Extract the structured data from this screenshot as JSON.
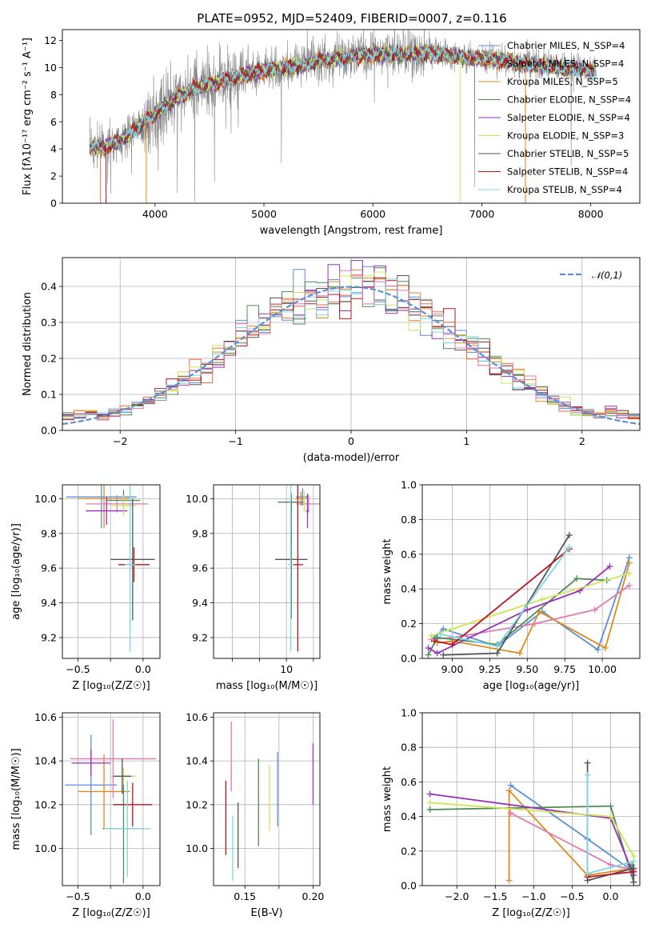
{
  "chart_data": [
    {
      "id": "spectrum",
      "type": "line",
      "title": "PLATE=0952, MJD=52409, FIBERID=0007, z=0.116",
      "xlabel": "wavelength [Angstrom, rest frame]",
      "ylabel": "Flux [fλ10⁻¹⁷ erg cm⁻² s⁻¹ A⁻¹]",
      "xlim": [
        3150,
        8450
      ],
      "ylim": [
        0,
        12.8
      ],
      "xticks": [
        4000,
        5000,
        6000,
        7000,
        8000
      ],
      "yticks": [
        0,
        2,
        4,
        6,
        8,
        10,
        12
      ],
      "continuum": {
        "x": [
          3400,
          3500,
          3600,
          3700,
          3800,
          3900,
          4000,
          4200,
          4400,
          4600,
          4800,
          5000,
          5200,
          5400,
          5600,
          5800,
          6000,
          6300,
          6600,
          6900,
          7200,
          7400,
          7700,
          8000,
          8050
        ],
        "y": [
          4.3,
          4.0,
          4.3,
          4.7,
          5.3,
          6.0,
          6.6,
          7.8,
          8.6,
          9.0,
          9.4,
          9.8,
          10.0,
          10.3,
          10.6,
          10.8,
          11.0,
          11.0,
          11.0,
          10.7,
          10.5,
          10.3,
          10.0,
          9.8,
          9.8
        ]
      },
      "series": [
        {
          "name": "Chabrier MILES, N_SSP=4",
          "color": "#5b8fd6"
        },
        {
          "name": "Salpeter MILES, N_SSP=4",
          "color": "#f06b3a"
        },
        {
          "name": "Kroupa MILES, N_SSP=5",
          "color": "#e08a1e"
        },
        {
          "name": "Chabrier ELODIE, N_SSP=4",
          "color": "#4e8c52"
        },
        {
          "name": "Salpeter ELODIE, N_SSP=4",
          "color": "#9b30b8"
        },
        {
          "name": "Kroupa ELODIE, N_SSP=3",
          "color": "#cde55a"
        },
        {
          "name": "Chabrier STELIB, N_SSP=5",
          "color": "#555555"
        },
        {
          "name": "Salpeter STELIB, N_SSP=4",
          "color": "#b8161c"
        },
        {
          "name": "Kroupa STELIB, N_SSP=4",
          "color": "#7ed6e6"
        }
      ],
      "legend": "right"
    },
    {
      "id": "residuals",
      "type": "step",
      "xlabel": "(data-model)/error",
      "ylabel": "Normed distribution",
      "xlim": [
        -2.5,
        2.5
      ],
      "ylim": [
        0,
        0.48
      ],
      "xticks": [
        -2,
        -1,
        0,
        1,
        2
      ],
      "yticks": [
        0.0,
        0.1,
        0.2,
        0.3,
        0.4
      ],
      "gaussian_label": "𝒩(0,1)",
      "gaussian_color": "#5b8fd6",
      "legend": "top-right",
      "bin_width": 0.1,
      "colors": [
        "#5b8fd6",
        "#f06b3a",
        "#e08a1e",
        "#4e8c52",
        "#9b30b8",
        "#cde55a",
        "#555555",
        "#b8161c",
        "#7ed6e6",
        "#e07ab0"
      ]
    },
    {
      "id": "age_vs_Z",
      "type": "errorbar",
      "xlabel": "Z [log₁₀(Z/Z☉)]",
      "ylabel": "age  [log₁₀(age/yr)]",
      "xlim": [
        -0.62,
        0.13
      ],
      "ylim": [
        9.08,
        10.08
      ],
      "xticks": [
        -0.5,
        -0.25,
        0.0
      ],
      "xtick_labels": [
        "−0.5",
        "",
        "0.0"
      ],
      "yticks": [
        9.2,
        9.4,
        9.6,
        9.8,
        10.0
      ],
      "points": [
        {
          "x": -0.32,
          "xerr": 0.27,
          "y": 10.01,
          "yerr": 0.18,
          "color": "#5b8fd6"
        },
        {
          "x": -0.3,
          "xerr": 0.2,
          "y": 10.0,
          "yerr": 0.17,
          "color": "#e08a1e"
        },
        {
          "x": -0.2,
          "xerr": 0.24,
          "y": 9.97,
          "yerr": 0.05,
          "color": "#e07ab0"
        },
        {
          "x": -0.15,
          "xerr": 0.13,
          "y": 9.99,
          "yerr": 0.06,
          "color": "#4e8c52"
        },
        {
          "x": -0.28,
          "xerr": 0.16,
          "y": 9.93,
          "yerr": 0.08,
          "color": "#9b30b8"
        },
        {
          "x": -0.15,
          "xerr": 0.1,
          "y": 9.96,
          "yerr": 0.06,
          "color": "#cde55a"
        },
        {
          "x": -0.08,
          "xerr": 0.17,
          "y": 9.65,
          "yerr": 0.35,
          "color": "#555555"
        },
        {
          "x": -0.07,
          "xerr": 0.12,
          "y": 9.62,
          "yerr": 0.1,
          "color": "#b8161c"
        },
        {
          "x": -0.1,
          "xerr": 0.04,
          "y": 9.62,
          "yerr": 0.5,
          "color": "#7ed6e6"
        }
      ]
    },
    {
      "id": "age_vs_mass",
      "type": "errorbar",
      "xlabel": "mass [log₁₀(M/M☉)]",
      "ylabel": "",
      "xlim": [
        8.65,
        10.62
      ],
      "ylim": [
        9.08,
        10.08
      ],
      "xticks": [
        9,
        9.5,
        10,
        10.5
      ],
      "xtick_labels": [
        "",
        "",
        "10",
        ""
      ],
      "yticks": [
        9.2,
        9.4,
        9.6,
        9.8,
        10.0
      ],
      "points": [
        {
          "x": 10.3,
          "xerr": 0.12,
          "y": 10.01,
          "yerr": 0.05,
          "color": "#5b8fd6"
        },
        {
          "x": 10.27,
          "xerr": 0.1,
          "y": 10.0,
          "yerr": 0.04,
          "color": "#e08a1e"
        },
        {
          "x": 10.41,
          "xerr": 0.22,
          "y": 9.97,
          "yerr": 0.05,
          "color": "#e07ab0"
        },
        {
          "x": 10.09,
          "xerr": 0.25,
          "y": 9.98,
          "yerr": 0.05,
          "color": "#4e8c52"
        },
        {
          "x": 10.39,
          "xerr": 0.03,
          "y": 9.93,
          "yerr": 0.1,
          "color": "#9b30b8"
        },
        {
          "x": 10.33,
          "xerr": 0.02,
          "y": 9.98,
          "yerr": 0.06,
          "color": "#cde55a"
        },
        {
          "x": 10.09,
          "xerr": 0.3,
          "y": 9.65,
          "yerr": 0.34,
          "color": "#555555"
        },
        {
          "x": 10.21,
          "xerr": 0.1,
          "y": 9.62,
          "yerr": 0.5,
          "color": "#b8161c"
        },
        {
          "x": 10.08,
          "xerr": 0.05,
          "y": 9.62,
          "yerr": 0.5,
          "color": "#7ed6e6"
        }
      ]
    },
    {
      "id": "weight_vs_age",
      "type": "line",
      "xlabel": "age  [log₁₀(age/yr)]",
      "ylabel": "mass weight",
      "xlim": [
        8.8,
        10.25
      ],
      "ylim": [
        0.0,
        1.0
      ],
      "xticks": [
        9.0,
        9.25,
        9.5,
        9.75,
        10.0
      ],
      "xtick_labels": [
        "9.00",
        "9.25",
        "9.50",
        "9.75",
        "10.00"
      ],
      "yticks": [
        0.0,
        0.2,
        0.4,
        0.6,
        0.8,
        1.0
      ],
      "series": [
        {
          "color": "#5b8fd6",
          "x": [
            8.88,
            8.94,
            9.3,
            9.6,
            9.97,
            10.18
          ],
          "y": [
            0.12,
            0.17,
            0.07,
            0.27,
            0.05,
            0.58
          ]
        },
        {
          "color": "#e08a1e",
          "x": [
            8.9,
            9.0,
            9.45,
            9.58,
            10.02,
            10.18
          ],
          "y": [
            0.09,
            0.1,
            0.03,
            0.27,
            0.06,
            0.55
          ]
        },
        {
          "color": "#e07ab0",
          "x": [
            8.86,
            9.0,
            9.55,
            9.95,
            10.18
          ],
          "y": [
            0.11,
            0.12,
            0.2,
            0.28,
            0.42
          ]
        },
        {
          "color": "#4e8c52",
          "x": [
            8.84,
            8.9,
            9.3,
            9.83,
            10.03
          ],
          "y": [
            0.02,
            0.12,
            0.08,
            0.46,
            0.45
          ]
        },
        {
          "color": "#9b30b8",
          "x": [
            8.84,
            8.9,
            9.5,
            9.85,
            10.05
          ],
          "y": [
            0.06,
            0.03,
            0.28,
            0.39,
            0.53
          ]
        },
        {
          "color": "#cde55a",
          "x": [
            8.86,
            9.0,
            9.6,
            10.18
          ],
          "y": [
            0.13,
            0.17,
            0.34,
            0.49
          ]
        },
        {
          "color": "#555555",
          "x": [
            8.94,
            9.3,
            9.78
          ],
          "y": [
            0.02,
            0.03,
            0.71
          ]
        },
        {
          "color": "#b8161c",
          "x": [
            8.88,
            9.0,
            9.78
          ],
          "y": [
            0.1,
            0.08,
            0.63
          ]
        },
        {
          "color": "#7ed6e6",
          "x": [
            8.92,
            9.3,
            9.78
          ],
          "y": [
            0.14,
            0.07,
            0.64
          ]
        }
      ]
    },
    {
      "id": "mass_vs_Z",
      "type": "errorbar",
      "xlabel": "Z [log₁₀(Z/Z☉)]",
      "ylabel": "mass [log₁₀(M/M☉)]",
      "xlim": [
        -0.62,
        0.13
      ],
      "ylim": [
        9.83,
        10.62
      ],
      "xticks": [
        -0.5,
        -0.25,
        0.0
      ],
      "xtick_labels": [
        "−0.5",
        "",
        "0.0"
      ],
      "yticks": [
        10.0,
        10.2,
        10.4,
        10.6
      ],
      "points": [
        {
          "x": -0.4,
          "xerr": 0.2,
          "y": 10.29,
          "yerr": 0.23,
          "color": "#5b8fd6"
        },
        {
          "x": -0.3,
          "xerr": 0.2,
          "y": 10.26,
          "yerr": 0.17,
          "color": "#e08a1e"
        },
        {
          "x": -0.23,
          "xerr": 0.33,
          "y": 10.41,
          "yerr": 0.18,
          "color": "#e07ab0"
        },
        {
          "x": -0.15,
          "xerr": 0.16,
          "y": 10.09,
          "yerr": 0.25,
          "color": "#4e8c52"
        },
        {
          "x": -0.4,
          "xerr": 0.15,
          "y": 10.39,
          "yerr": 0.06,
          "color": "#9b30b8"
        },
        {
          "x": -0.15,
          "xerr": 0.1,
          "y": 10.33,
          "yerr": 0.04,
          "color": "#cde55a"
        },
        {
          "x": -0.16,
          "xerr": 0.07,
          "y": 10.33,
          "yerr": 0.08,
          "color": "#555555"
        },
        {
          "x": -0.08,
          "xerr": 0.15,
          "y": 10.2,
          "yerr": 0.1,
          "color": "#b8161c"
        },
        {
          "x": -0.12,
          "xerr": 0.18,
          "y": 10.09,
          "yerr": 0.22,
          "color": "#7ed6e6"
        }
      ]
    },
    {
      "id": "mass_vs_ebv",
      "type": "errorbar",
      "xlabel": "E(B-V)",
      "ylabel": "",
      "xlim": [
        0.127,
        0.205
      ],
      "ylim": [
        9.83,
        10.62
      ],
      "xticks": [
        0.15,
        0.175,
        0.2
      ],
      "xtick_labels": [
        "0.15",
        "",
        "0.20"
      ],
      "yticks": [
        10.0,
        10.2,
        10.4,
        10.6
      ],
      "points": [
        {
          "x": 0.136,
          "xerr": 0,
          "y": 10.14,
          "yerr": 0.17,
          "color": "#b8161c"
        },
        {
          "x": 0.14,
          "xerr": 0,
          "y": 10.42,
          "yerr": 0.16,
          "color": "#e07ab0"
        },
        {
          "x": 0.141,
          "xerr": 0,
          "y": 10.0,
          "yerr": 0.15,
          "color": "#7ed6e6"
        },
        {
          "x": 0.145,
          "xerr": 0,
          "y": 10.06,
          "yerr": 0.15,
          "color": "#555555"
        },
        {
          "x": 0.16,
          "xerr": 0,
          "y": 10.21,
          "yerr": 0.2,
          "color": "#4e8c52"
        },
        {
          "x": 0.168,
          "xerr": 0,
          "y": 10.23,
          "yerr": 0.15,
          "color": "#cde55a"
        },
        {
          "x": 0.174,
          "xerr": 0,
          "y": 10.27,
          "yerr": 0.17,
          "color": "#5b8fd6"
        },
        {
          "x": 0.2,
          "xerr": 0,
          "y": 10.34,
          "yerr": 0.14,
          "color": "#9b30b8"
        }
      ]
    },
    {
      "id": "weight_vs_Z",
      "type": "line",
      "xlabel": "Z [log₁₀(Z/Z☉)]",
      "ylabel": "mass weight",
      "xlim": [
        -2.45,
        0.38
      ],
      "ylim": [
        0.0,
        1.0
      ],
      "xticks": [
        -2.0,
        -1.5,
        -1.0,
        -0.5,
        0.0
      ],
      "xtick_labels": [
        "−2.0",
        "−1.5",
        "−1.0",
        "−0.5",
        "0.0"
      ],
      "yticks": [
        0.0,
        0.2,
        0.4,
        0.6,
        0.8,
        1.0
      ],
      "series": [
        {
          "color": "#5b8fd6",
          "x": [
            -1.3,
            -0.3,
            0.3,
            0.25
          ],
          "y": [
            0.58,
            0.27,
            0.08,
            0.12
          ]
        },
        {
          "color": "#e08a1e",
          "x": [
            -1.32,
            -1.32,
            -0.3,
            0.3
          ],
          "y": [
            0.03,
            0.55,
            0.06,
            0.1
          ]
        },
        {
          "color": "#e07ab0",
          "x": [
            -1.3,
            0.0,
            0.3
          ],
          "y": [
            0.42,
            0.12,
            0.09
          ]
        },
        {
          "color": "#4e8c52",
          "x": [
            -2.35,
            0.0,
            0.3,
            0.28
          ],
          "y": [
            0.44,
            0.46,
            0.02,
            0.12
          ]
        },
        {
          "color": "#9b30b8",
          "x": [
            -2.35,
            0.0,
            0.3
          ],
          "y": [
            0.53,
            0.39,
            0.06
          ]
        },
        {
          "color": "#cde55a",
          "x": [
            -2.35,
            0.0,
            0.3
          ],
          "y": [
            0.48,
            0.4,
            0.17
          ]
        },
        {
          "color": "#555555",
          "x": [
            -0.3,
            -0.3,
            0.3,
            0.3
          ],
          "y": [
            0.71,
            0.03,
            0.1,
            0.02
          ]
        },
        {
          "color": "#b8161c",
          "x": [
            -0.3,
            0.3
          ],
          "y": [
            0.05,
            0.08
          ]
        },
        {
          "color": "#7ed6e6",
          "x": [
            -0.3,
            -0.3,
            0.3
          ],
          "y": [
            0.64,
            0.07,
            0.14
          ]
        }
      ]
    }
  ]
}
